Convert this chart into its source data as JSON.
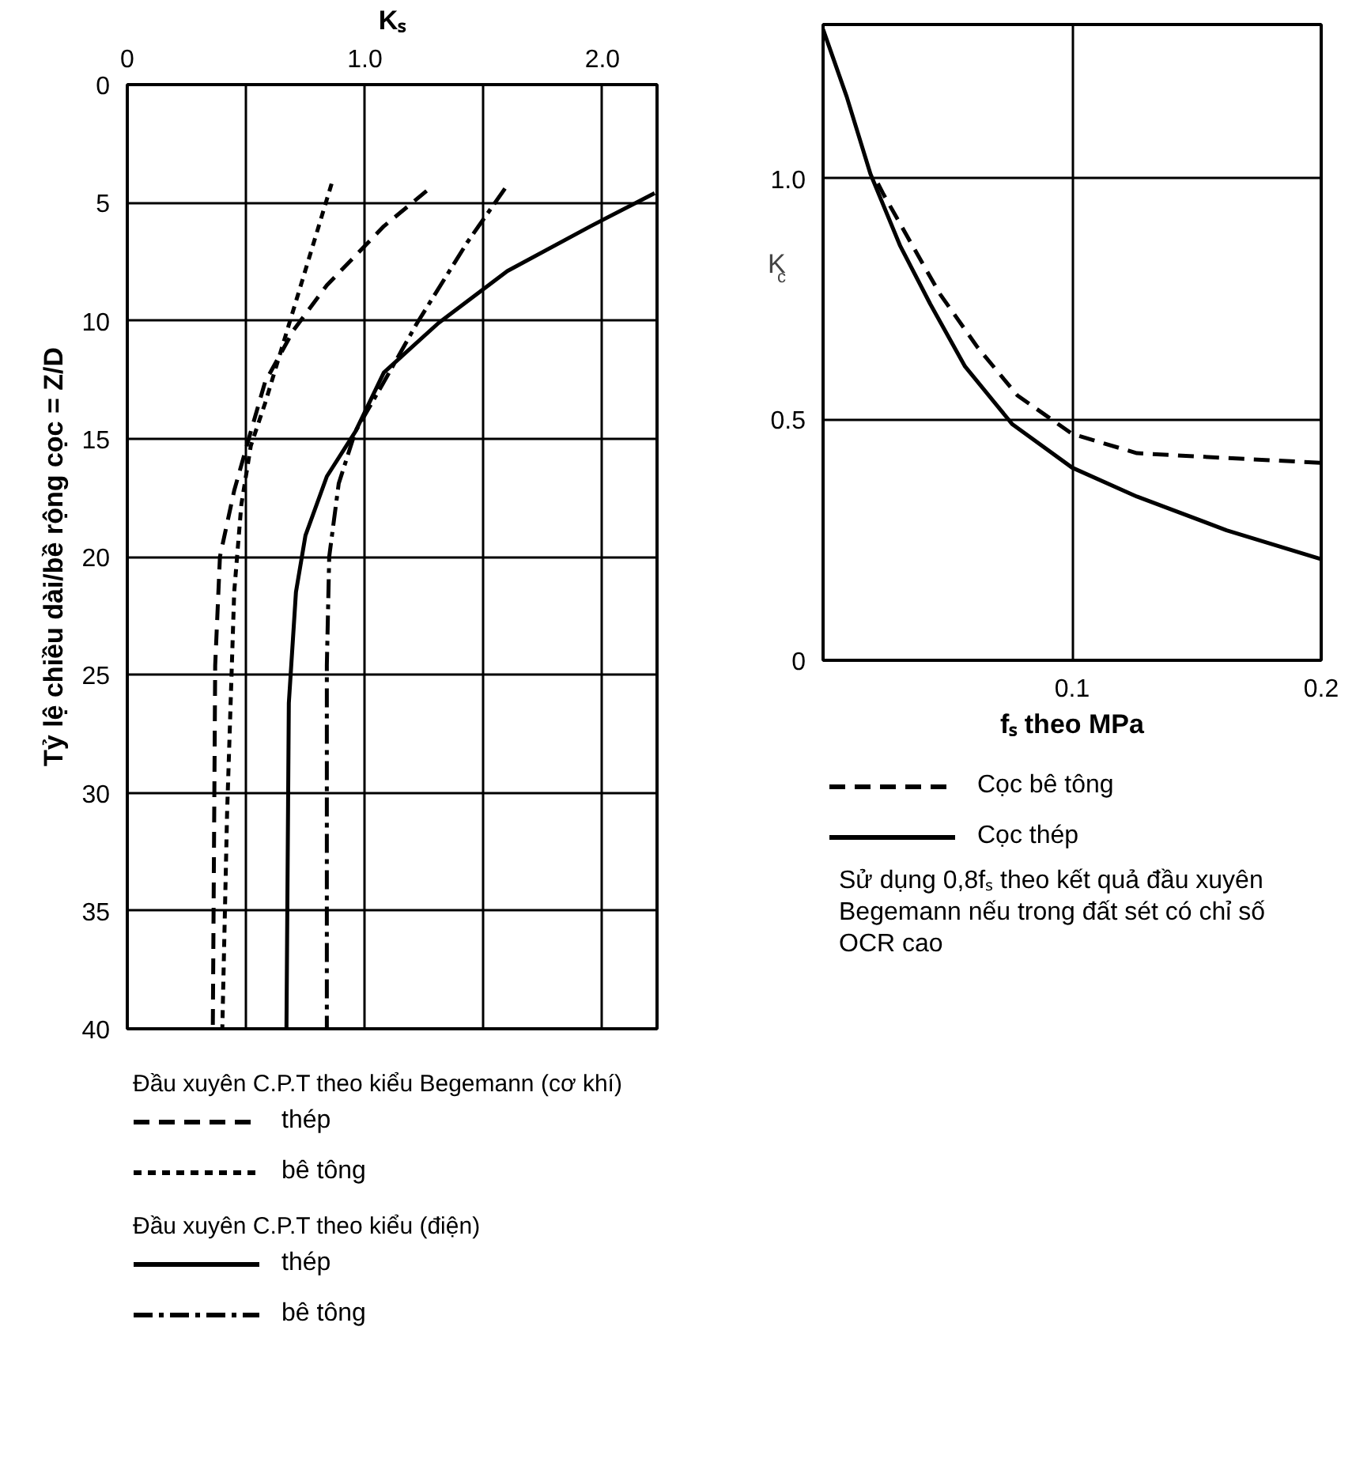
{
  "chart_data": [
    {
      "type": "line",
      "xlabel": "Kₛ",
      "ylabel": "Tỷ lệ chiều dài/bề rộng cọc = Z/D",
      "xlim": [
        0,
        2.23
      ],
      "ylim": [
        40,
        0
      ],
      "xticks": [
        0,
        {
          "value": 0.5,
          "label": null
        },
        {
          "value": 1,
          "label": "1.0"
        },
        {
          "value": 1.5,
          "label": null
        },
        {
          "value": 2,
          "label": "2.0"
        }
      ],
      "yticks": [
        0,
        5,
        10,
        15,
        20,
        25,
        30,
        35,
        40
      ],
      "grid": true,
      "legend": "bottom",
      "legend_title": [
        "Đầu xuyên C.P.T theo kiểu Begemann (cơ khí)",
        "Đầu xuyên C.P.T theo kiểu (điện)"
      ],
      "series": [
        {
          "name": "thép",
          "color": "#000000",
          "line_style": "dashed",
          "x": [
            1.26,
            1.08,
            0.84,
            0.7,
            0.58,
            0.52,
            0.45,
            0.39,
            0.37,
            0.36
          ],
          "values": [
            4.5,
            6,
            8.5,
            10.4,
            12.6,
            14.7,
            17.2,
            20,
            24.6,
            40
          ]
        },
        {
          "name": "bê tông",
          "color": "#000000",
          "line_style": "dotted",
          "x": [
            0.86,
            0.58,
            0.52,
            0.48,
            0.45,
            0.42,
            0.4
          ],
          "values": [
            4.2,
            13.5,
            15.3,
            17.8,
            21.5,
            30.9,
            40
          ]
        },
        {
          "name": "thép",
          "color": "#000000",
          "line_style": "solid",
          "x": [
            2.22,
            1.95,
            1.6,
            1.31,
            1.08,
            0.96,
            0.84,
            0.75,
            0.71,
            0.68,
            0.67
          ],
          "values": [
            4.6,
            6,
            7.9,
            10.1,
            12.2,
            14.7,
            16.6,
            19.1,
            21.5,
            26.2,
            40
          ]
        },
        {
          "name": "bê tông",
          "color": "#000000",
          "line_style": "dashdot",
          "x": [
            1.59,
            1.43,
            1.22,
            1.08,
            0.96,
            0.89,
            0.85,
            0.84,
            0.84
          ],
          "values": [
            4.4,
            6.7,
            10.1,
            12.6,
            14.7,
            16.9,
            20,
            24.6,
            40
          ]
        }
      ]
    },
    {
      "type": "line",
      "xlabel": "fₛ theo MPa",
      "ylabel": "K$_{c}$",
      "xlim": [
        0,
        0.2
      ],
      "ylim": [
        0,
        1.32
      ],
      "xticks": [
        0.1,
        0.2
      ],
      "yticks": [
        0,
        0.5,
        {
          "value": 1,
          "label": "1.0"
        }
      ],
      "grid": true,
      "legend": "bottom",
      "annotations": [
        "Sử dụng 0,8fₛ theo kết quả đầu xuyên Begemann nếu trong đất sét có chỉ số OCR cao"
      ],
      "series": [
        {
          "name": "Cọc bê tông",
          "color": "#000000",
          "line_style": "dashed",
          "x": [
            0.022,
            0.024,
            0.036,
            0.047,
            0.062,
            0.078,
            0.1,
            0.126,
            0.162,
            0.2
          ],
          "values": [
            0.99,
            0.97,
            0.86,
            0.76,
            0.65,
            0.55,
            0.47,
            0.43,
            0.42,
            0.41
          ]
        },
        {
          "name": "Cọc thép",
          "color": "#000000",
          "line_style": "solid",
          "x": [
            0,
            0.0095,
            0.019,
            0.031,
            0.043,
            0.057,
            0.076,
            0.1,
            0.126,
            0.162,
            0.2
          ],
          "values": [
            1.31,
            1.17,
            1.01,
            0.86,
            0.74,
            0.61,
            0.49,
            0.4,
            0.34,
            0.27,
            0.21
          ]
        }
      ]
    }
  ]
}
